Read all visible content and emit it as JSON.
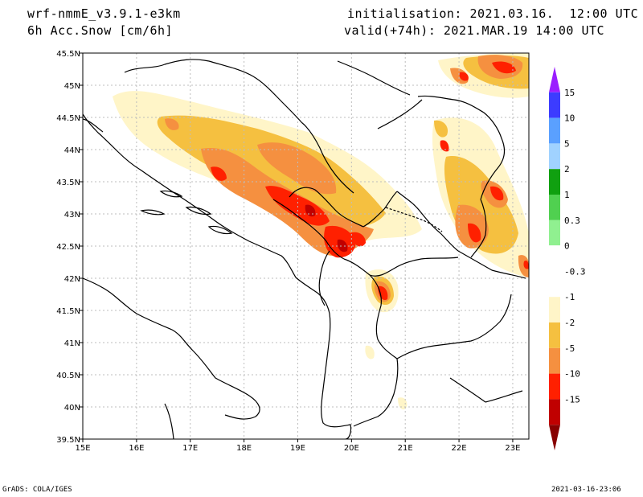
{
  "header": {
    "model": "wrf-nmmE_v3.9.1-e3km",
    "field": "6h Acc.Snow [cm/6h]",
    "init": "initialisation: 2021.03.16.  12:00 UTC",
    "valid": "valid(+74h): 2021.MAR.19 14:00 UTC"
  },
  "map": {
    "lon_ticks": [
      "15E",
      "16E",
      "17E",
      "18E",
      "19E",
      "20E",
      "21E",
      "22E",
      "23E"
    ],
    "lat_ticks": [
      "45.5N",
      "45N",
      "44.5N",
      "44N",
      "43.5N",
      "43N",
      "42.5N",
      "42N",
      "41.5N",
      "41N",
      "40.5N",
      "40N",
      "39.5N"
    ],
    "lon_range": [
      15,
      23.3
    ],
    "lat_range": [
      39.5,
      45.5
    ],
    "grid": true
  },
  "legend": {
    "labels": [
      "15",
      "10",
      "5",
      "2",
      "1",
      "0.3",
      "0",
      "-0.3",
      "-1",
      "-2",
      "-5",
      "-10",
      "-15"
    ],
    "colors": [
      "#9a1eff",
      "#3c3cff",
      "#5aa0ff",
      "#a0d2ff",
      "#10a010",
      "#50d050",
      "#90f090",
      "#ffffff",
      "#ffffff",
      "#fff5c8",
      "#f5c040",
      "#f59040",
      "#ff2000",
      "#c00000",
      "#880000"
    ]
  },
  "footer": {
    "left": "GrADS: COLA/IGES",
    "right": "2021-03-16-23:06"
  }
}
